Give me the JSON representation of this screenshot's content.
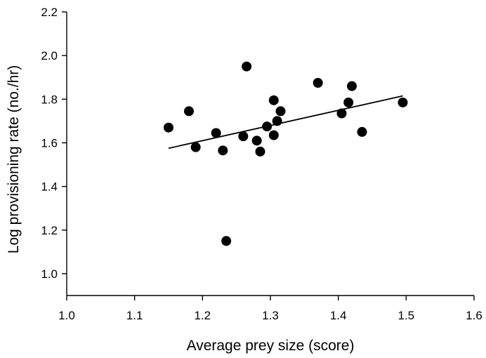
{
  "chart_data": {
    "type": "scatter",
    "title": "",
    "xlabel": "Average prey size (score)",
    "ylabel": "Log provisioning rate (no./hr)",
    "xlim": [
      1.0,
      1.6
    ],
    "ylim": [
      0.9,
      2.2
    ],
    "x_ticks": [
      1.0,
      1.1,
      1.2,
      1.3,
      1.4,
      1.5,
      1.6
    ],
    "x_tick_labels": [
      "1.0",
      "1.1",
      "1.2",
      "1.3",
      "1.4",
      "1.5",
      "1.6"
    ],
    "y_ticks": [
      1.0,
      1.2,
      1.4,
      1.6,
      1.8,
      2.0,
      2.2
    ],
    "y_tick_labels": [
      "1.0",
      "1.2",
      "1.4",
      "1.6",
      "1.8",
      "2.0",
      "2.2"
    ],
    "grid": false,
    "legend": "none",
    "series": [
      {
        "points": [
          {
            "x": 1.15,
            "y": 1.67
          },
          {
            "x": 1.18,
            "y": 1.745
          },
          {
            "x": 1.19,
            "y": 1.58
          },
          {
            "x": 1.22,
            "y": 1.645
          },
          {
            "x": 1.23,
            "y": 1.565
          },
          {
            "x": 1.235,
            "y": 1.15
          },
          {
            "x": 1.26,
            "y": 1.63
          },
          {
            "x": 1.265,
            "y": 1.95
          },
          {
            "x": 1.28,
            "y": 1.61
          },
          {
            "x": 1.285,
            "y": 1.56
          },
          {
            "x": 1.295,
            "y": 1.675
          },
          {
            "x": 1.305,
            "y": 1.795
          },
          {
            "x": 1.305,
            "y": 1.635
          },
          {
            "x": 1.31,
            "y": 1.7
          },
          {
            "x": 1.315,
            "y": 1.745
          },
          {
            "x": 1.37,
            "y": 1.875
          },
          {
            "x": 1.405,
            "y": 1.735
          },
          {
            "x": 1.415,
            "y": 1.785
          },
          {
            "x": 1.42,
            "y": 1.86
          },
          {
            "x": 1.435,
            "y": 1.65
          },
          {
            "x": 1.495,
            "y": 1.785
          }
        ]
      }
    ],
    "trendline": {
      "x": [
        1.15,
        1.495
      ],
      "y": [
        1.575,
        1.815
      ]
    },
    "colors": {
      "points": "#000000",
      "trendline": "#000000",
      "axes": "#000000"
    }
  }
}
